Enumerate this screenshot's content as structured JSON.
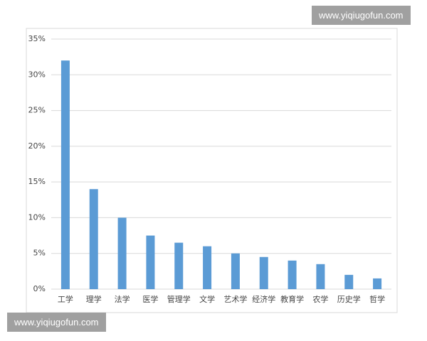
{
  "chart_data": {
    "type": "bar",
    "categories": [
      "工学",
      "理学",
      "法学",
      "医学",
      "管理学",
      "文学",
      "艺术学",
      "经济学",
      "教育学",
      "农学",
      "历史学",
      "哲学"
    ],
    "values": [
      32,
      14,
      10,
      7.5,
      6.5,
      6,
      5,
      4.5,
      4,
      3.5,
      2,
      1.5
    ],
    "color": "#5b9bd5",
    "ylim": [
      0,
      35
    ],
    "yticks": [
      {
        "value": 0,
        "label": "0%"
      },
      {
        "value": 5,
        "label": "5%"
      },
      {
        "value": 10,
        "label": "10%"
      },
      {
        "value": 15,
        "label": "15%"
      },
      {
        "value": 20,
        "label": "20%"
      },
      {
        "value": 25,
        "label": "25%"
      },
      {
        "value": 30,
        "label": "30%"
      },
      {
        "value": 35,
        "label": "35%"
      }
    ],
    "grid": true
  },
  "watermarks": [
    "www.yiqiugofun.com",
    "www.yiqiugofun.com"
  ]
}
